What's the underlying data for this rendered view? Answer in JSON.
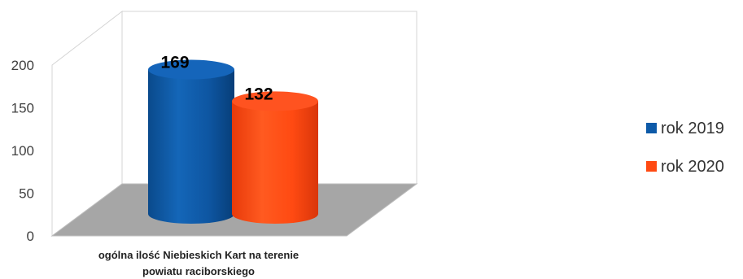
{
  "chart_data": {
    "type": "bar",
    "style": "3d-cylinder",
    "categories": [
      "ogólna ilość Niebieskich Kart na terenie powiatu raciborskiego"
    ],
    "category_label_lines": [
      "ogólna ilość Niebieskich Kart na terenie",
      "powiatu raciborskiego"
    ],
    "series": [
      {
        "name": "rok 2019",
        "values": [
          169
        ],
        "color": "#0D5AA8"
      },
      {
        "name": "rok 2020",
        "values": [
          132
        ],
        "color": "#FF4A12"
      }
    ],
    "ylim": [
      0,
      200
    ],
    "yticks": [
      "0",
      "50",
      "100",
      "150",
      "200"
    ],
    "data_labels": [
      "169",
      "132"
    ],
    "legend_position": "right",
    "grid": false,
    "floor_color": "#A6A6A6"
  }
}
